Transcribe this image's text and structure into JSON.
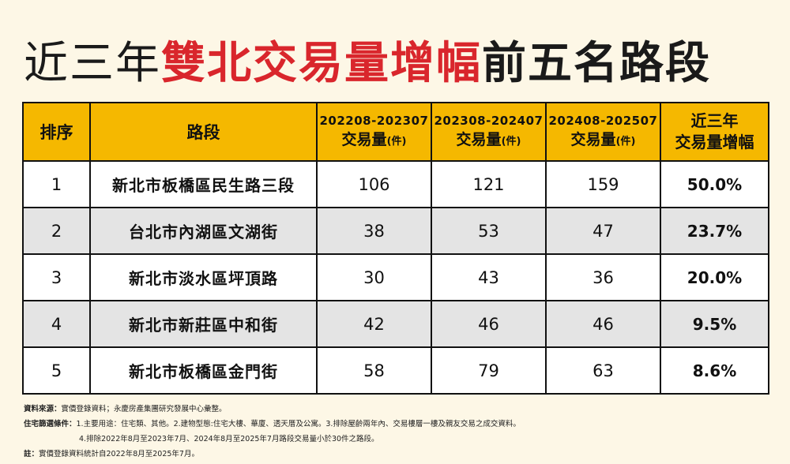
{
  "title": {
    "part1": "近三年",
    "part2": "雙北交易量增幅",
    "part3": "前五名路段"
  },
  "colors": {
    "header_bg": "#f5b800",
    "title_accent": "#d9262c",
    "page_bg": "#fdf7e6",
    "row_alt": "#e4e4e4"
  },
  "table": {
    "headers": {
      "rank": "排序",
      "road": "路段",
      "periods": [
        {
          "range": "202208-202307",
          "label": "交易量",
          "unit": "(件)"
        },
        {
          "range": "202308-202407",
          "label": "交易量",
          "unit": "(件)"
        },
        {
          "range": "202408-202507",
          "label": "交易量",
          "unit": "(件)"
        }
      ],
      "growth_line1": "近三年",
      "growth_line2": "交易量增幅"
    },
    "rows": [
      {
        "rank": "1",
        "road": "新北市板橋區民生路三段",
        "v1": "106",
        "v2": "121",
        "v3": "159",
        "growth": "50.0%"
      },
      {
        "rank": "2",
        "road": "台北市內湖區文湖街",
        "v1": "38",
        "v2": "53",
        "v3": "47",
        "growth": "23.7%"
      },
      {
        "rank": "3",
        "road": "新北市淡水區坪頂路",
        "v1": "30",
        "v2": "43",
        "v3": "36",
        "growth": "20.0%"
      },
      {
        "rank": "4",
        "road": "新北市新莊區中和街",
        "v1": "42",
        "v2": "46",
        "v3": "46",
        "growth": "9.5%"
      },
      {
        "rank": "5",
        "road": "新北市板橋區金門街",
        "v1": "58",
        "v2": "79",
        "v3": "63",
        "growth": "8.6%"
      }
    ]
  },
  "notes": {
    "source_label": "資料來源：",
    "source_text": "實價登錄資料；永慶房產集團研究發展中心彙整。",
    "criteria_label": "住宅篩選條件：",
    "criteria_text1": "1.主要用途：住宅類、其他。2.建物型態:住宅大樓、華廈、透天厝及公寓。3.排除屋齡兩年內、交易樓層一樓及親友交易之成交資料。",
    "criteria_text2": "4.排除2022年8月至2023年7月、2024年8月至2025年7月路段交易量小於30件之路段。",
    "note_label": "註：",
    "note_text": "實價登錄資料統計自2022年8月至2025年7月。"
  }
}
